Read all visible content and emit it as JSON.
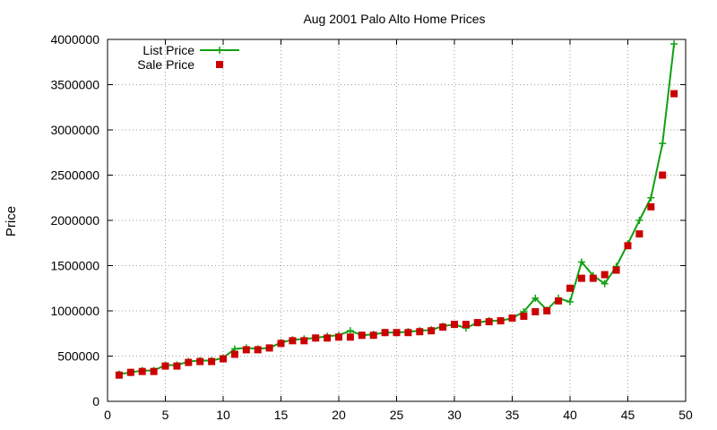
{
  "chart_data": {
    "type": "line",
    "title": "Aug 2001 Palo Alto Home Prices",
    "xlabel": "",
    "ylabel": "Price",
    "xlim": [
      0,
      50
    ],
    "ylim": [
      0,
      4000000
    ],
    "x_ticks": [
      "0",
      "5",
      "10",
      "15",
      "20",
      "25",
      "30",
      "35",
      "40",
      "45",
      "50"
    ],
    "y_ticks": [
      "0",
      "500000",
      "1000000",
      "1500000",
      "2000000",
      "2500000",
      "3000000",
      "3500000",
      "4000000"
    ],
    "grid": true,
    "legend_position": "top-left",
    "x": [
      1,
      2,
      3,
      4,
      5,
      6,
      7,
      8,
      9,
      10,
      11,
      12,
      13,
      14,
      15,
      16,
      17,
      18,
      19,
      20,
      21,
      22,
      23,
      24,
      25,
      26,
      27,
      28,
      29,
      30,
      31,
      32,
      33,
      34,
      35,
      36,
      37,
      38,
      39,
      40,
      41,
      42,
      43,
      44,
      45,
      46,
      47,
      48,
      49
    ],
    "series": [
      {
        "name": "List Price",
        "style": "line-plus",
        "color": "#11a011",
        "values": [
          300000,
          320000,
          340000,
          340000,
          400000,
          400000,
          440000,
          450000,
          450000,
          480000,
          580000,
          590000,
          580000,
          590000,
          650000,
          680000,
          690000,
          700000,
          720000,
          730000,
          780000,
          730000,
          740000,
          760000,
          760000,
          770000,
          780000,
          790000,
          830000,
          850000,
          810000,
          870000,
          890000,
          890000,
          920000,
          990000,
          1140000,
          1010000,
          1140000,
          1100000,
          1540000,
          1390000,
          1300000,
          1490000,
          1740000,
          2000000,
          2250000,
          2850000,
          3950000
        ]
      },
      {
        "name": "Sale Price",
        "style": "square-points",
        "color": "#cc0000",
        "values": [
          290000,
          320000,
          330000,
          330000,
          390000,
          390000,
          430000,
          440000,
          440000,
          470000,
          520000,
          570000,
          570000,
          590000,
          640000,
          670000,
          670000,
          700000,
          700000,
          710000,
          710000,
          730000,
          730000,
          760000,
          760000,
          760000,
          770000,
          780000,
          820000,
          850000,
          850000,
          870000,
          880000,
          890000,
          920000,
          940000,
          990000,
          1000000,
          1110000,
          1250000,
          1360000,
          1360000,
          1400000,
          1450000,
          1720000,
          1850000,
          2150000,
          2500000,
          3400000
        ]
      }
    ]
  }
}
